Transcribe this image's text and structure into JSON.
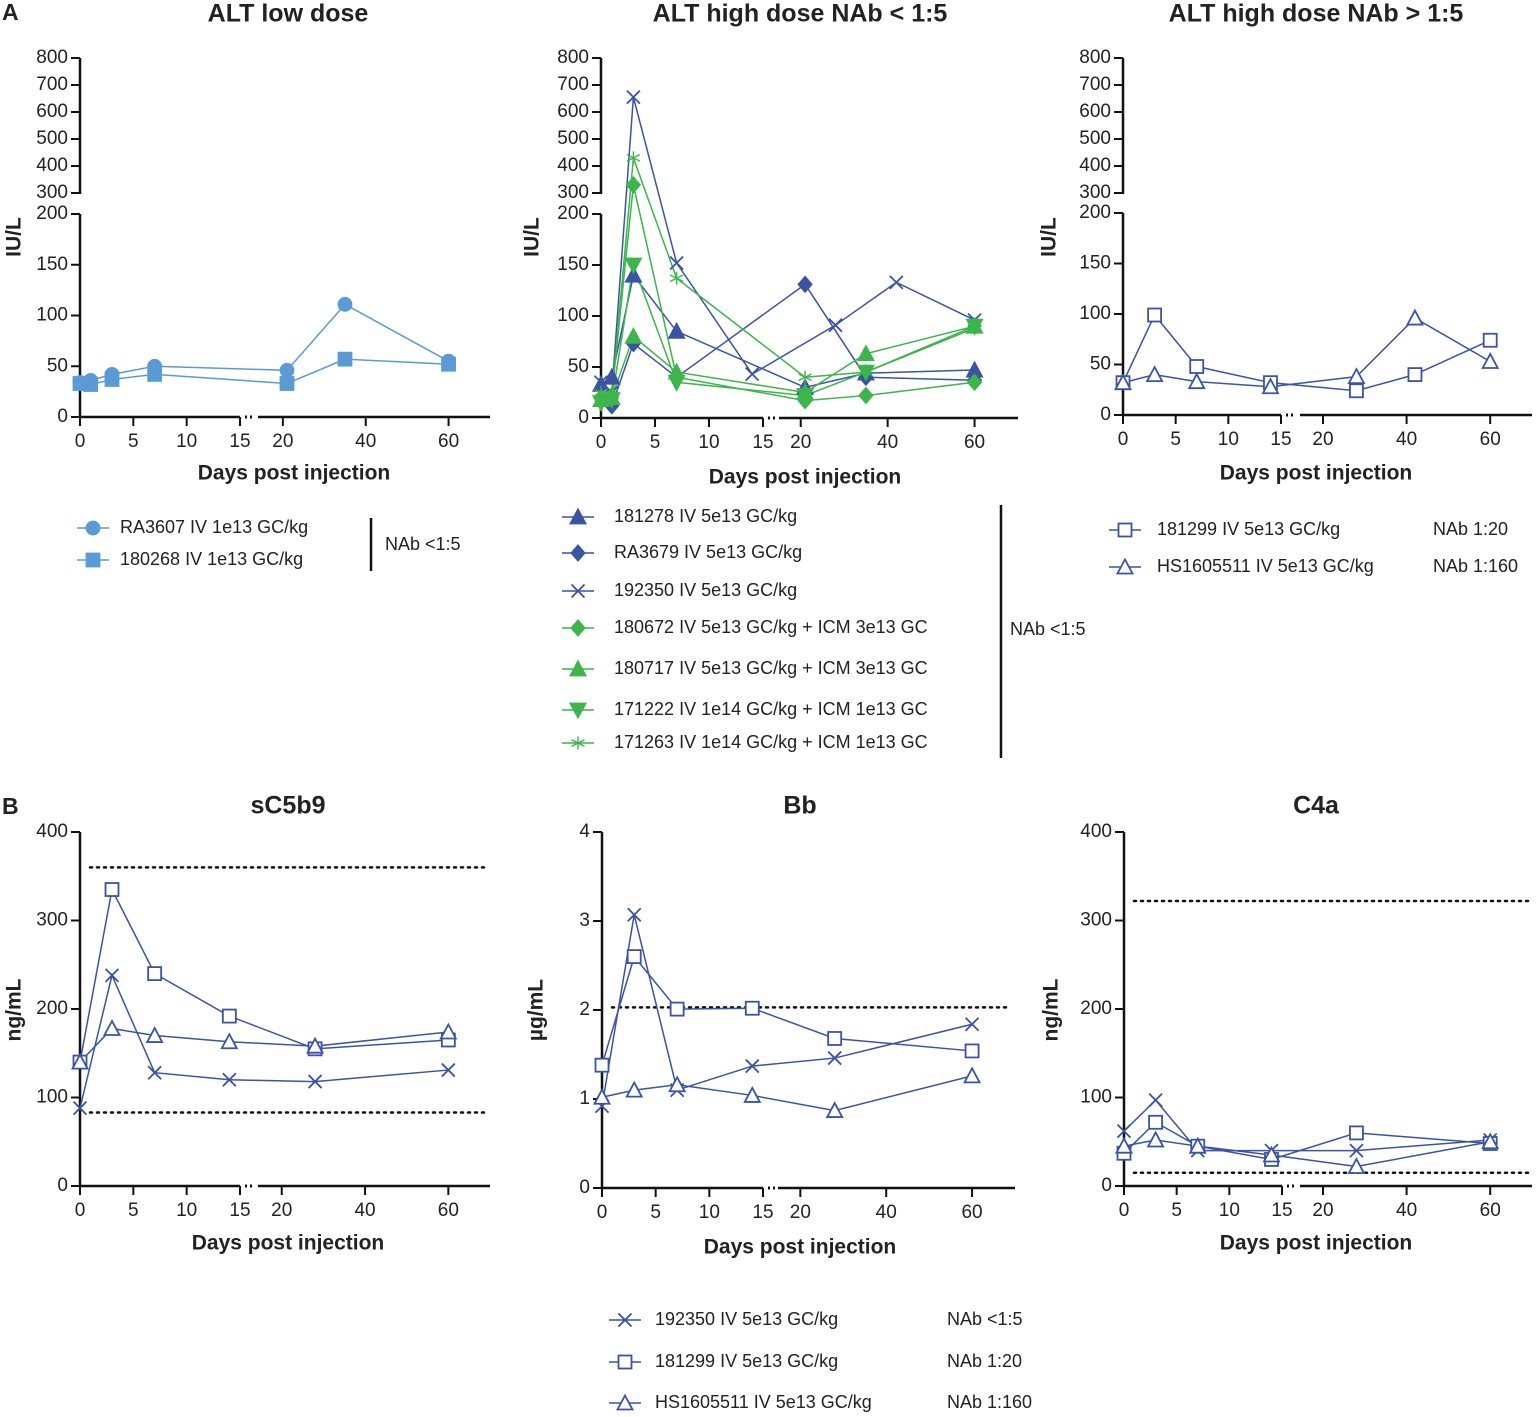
{
  "panel_labels": [
    "A",
    "B"
  ],
  "chart_data": [
    {
      "type": "line",
      "title": "ALT low dose",
      "xlabel": "Days post injection",
      "ylabel": "IU/L",
      "xlim_segments": [
        [
          0,
          15
        ],
        [
          14,
          70
        ]
      ],
      "xticks": [
        0,
        5,
        10,
        15,
        20,
        40,
        60
      ],
      "ylim_segments": [
        [
          0,
          200
        ],
        [
          300,
          800
        ]
      ],
      "yticks": [
        0,
        50,
        100,
        150,
        200,
        300,
        400,
        500,
        600,
        700,
        800
      ],
      "group_note": "NAb <1:5",
      "series": [
        {
          "name": "RA3607 IV 1e13 GC/kg",
          "color": "#5b9bd5",
          "marker": "circle",
          "marker_fill": true,
          "x": [
            0,
            1,
            3,
            7,
            21,
            35,
            60
          ],
          "values": [
            34,
            36,
            42,
            50,
            46,
            111,
            55
          ]
        },
        {
          "name": "180268 IV 1e13 GC/kg",
          "color": "#5b9bd5",
          "marker": "square",
          "marker_fill": true,
          "x": [
            0,
            1,
            3,
            7,
            21,
            35,
            60
          ],
          "values": [
            33,
            32,
            37,
            42,
            33,
            57,
            52
          ]
        }
      ]
    },
    {
      "type": "line",
      "title": "ALT high dose NAb < 1:5",
      "xlabel": "Days post injection",
      "ylabel": "IU/L",
      "xlim_segments": [
        [
          0,
          15
        ],
        [
          15,
          70
        ]
      ],
      "xticks": [
        0,
        5,
        10,
        15,
        20,
        40,
        60
      ],
      "ylim_segments": [
        [
          0,
          200
        ],
        [
          300,
          800
        ]
      ],
      "yticks": [
        0,
        50,
        100,
        150,
        200,
        300,
        400,
        500,
        600,
        700,
        800
      ],
      "group_note": "NAb <1:5",
      "series": [
        {
          "name": "181278 IV 5e13 GC/kg",
          "color": "#3a53a4",
          "marker": "triangle",
          "marker_fill": true,
          "x": [
            0,
            1,
            3,
            7,
            21,
            35,
            60
          ],
          "values": [
            33,
            40,
            140,
            85,
            30,
            44,
            47
          ]
        },
        {
          "name": "RA3679 IV 5e13 GC/kg",
          "color": "#3a53a4",
          "marker": "diamond",
          "marker_fill": true,
          "x": [
            0,
            1,
            3,
            7,
            21,
            35,
            60
          ],
          "values": [
            20,
            12,
            73,
            40,
            131,
            40,
            37
          ]
        },
        {
          "name": "192350 IV 5e13 GC/kg",
          "color": "#3a53a4",
          "marker": "x",
          "marker_fill": true,
          "x": [
            0,
            1,
            3,
            7,
            14,
            28,
            42,
            60
          ],
          "values": [
            35,
            25,
            655,
            152,
            43,
            91,
            133,
            96
          ]
        },
        {
          "name": "180672 IV 5e13 GC/kg + ICM 3e13 GC",
          "color": "#3cb54a",
          "marker": "diamond",
          "marker_fill": true,
          "x": [
            0,
            1,
            3,
            7,
            21,
            35,
            60
          ],
          "values": [
            20,
            22,
            330,
            40,
            17,
            22,
            35
          ]
        },
        {
          "name": "180717 IV 5e13 GC/kg + ICM 3e13 GC",
          "color": "#3cb54a",
          "marker": "triangle",
          "marker_fill": true,
          "x": [
            0,
            1,
            3,
            7,
            21,
            35,
            60
          ],
          "values": [
            18,
            20,
            80,
            45,
            25,
            63,
            90
          ]
        },
        {
          "name": "171222 IV 1e14 GC/kg + ICM 1e13 GC",
          "color": "#3cb54a",
          "marker": "triangle-down",
          "marker_fill": true,
          "x": [
            0,
            1,
            3,
            7,
            21,
            35,
            60
          ],
          "values": [
            15,
            18,
            150,
            35,
            22,
            45,
            90
          ]
        },
        {
          "name": "171263 IV 1e14 GC/kg + ICM 1e13 GC",
          "color": "#3cb54a",
          "marker": "asterisk",
          "marker_fill": true,
          "x": [
            0,
            1,
            3,
            7,
            21,
            35,
            60
          ],
          "values": [
            25,
            22,
            430,
            137,
            40,
            45,
            88
          ]
        }
      ]
    },
    {
      "type": "line",
      "title": "ALT high dose NAb > 1:5",
      "xlabel": "Days post injection",
      "ylabel": "IU/L",
      "xlim_segments": [
        [
          0,
          15
        ],
        [
          14.5,
          70
        ]
      ],
      "xticks": [
        0,
        5,
        10,
        15,
        20,
        40,
        60
      ],
      "ylim_segments": [
        [
          0,
          200
        ],
        [
          300,
          800
        ]
      ],
      "yticks": [
        0,
        50,
        100,
        150,
        200,
        300,
        400,
        500,
        600,
        700,
        800
      ],
      "series": [
        {
          "name": "181299 IV 5e13 GC/kg",
          "note": "NAb 1:20",
          "color": "#3a53a4",
          "marker": "square",
          "marker_fill": false,
          "x": [
            0,
            3,
            7,
            14,
            28,
            42,
            60
          ],
          "values": [
            32,
            99,
            48,
            32,
            24,
            40,
            74
          ]
        },
        {
          "name": "HS1605511 IV 5e13 GC/kg",
          "note": "NAb 1:160",
          "color": "#3a53a4",
          "marker": "triangle",
          "marker_fill": false,
          "x": [
            0,
            3,
            7,
            14,
            28,
            42,
            60
          ],
          "values": [
            32,
            40,
            33,
            28,
            38,
            96,
            53
          ]
        }
      ]
    },
    {
      "type": "line",
      "title": "sC5b9",
      "xlabel": "Days post injection",
      "ylabel": "ng/mL",
      "xlim_segments": [
        [
          0,
          15
        ],
        [
          14.3,
          70
        ]
      ],
      "xticks": [
        0,
        5,
        10,
        15,
        20,
        40,
        60
      ],
      "ylim_segments": [
        [
          0,
          400
        ]
      ],
      "yticks": [
        0,
        100,
        200,
        300,
        400
      ],
      "hlines": [
        360,
        83
      ],
      "series": [
        {
          "color": "#3a53a4",
          "marker": "x",
          "marker_fill": false,
          "x": [
            0,
            3,
            7,
            14,
            28,
            60
          ],
          "values": [
            88,
            238,
            128,
            120,
            118,
            131
          ]
        },
        {
          "color": "#3a53a4",
          "marker": "square",
          "marker_fill": false,
          "x": [
            0,
            3,
            7,
            14,
            28,
            60
          ],
          "values": [
            140,
            335,
            240,
            192,
            155,
            165
          ]
        },
        {
          "color": "#3a53a4",
          "marker": "triangle",
          "marker_fill": false,
          "x": [
            0,
            3,
            7,
            14,
            28,
            60
          ],
          "values": [
            140,
            178,
            170,
            163,
            158,
            174
          ]
        }
      ]
    },
    {
      "type": "line",
      "title": "Bb",
      "xlabel": "Days post injection",
      "ylabel": "µg/mL",
      "xlim_segments": [
        [
          0,
          15
        ],
        [
          14.8,
          70
        ]
      ],
      "xticks": [
        0,
        5,
        10,
        15,
        20,
        40,
        60
      ],
      "ylim_segments": [
        [
          0,
          4
        ]
      ],
      "yticks": [
        0,
        1,
        2,
        3,
        4
      ],
      "hlines": [
        2.03
      ],
      "series": [
        {
          "color": "#3a53a4",
          "marker": "x",
          "marker_fill": false,
          "x": [
            0,
            3,
            7,
            14,
            28,
            60
          ],
          "values": [
            0.92,
            3.07,
            1.1,
            1.37,
            1.46,
            1.84
          ]
        },
        {
          "color": "#3a53a4",
          "marker": "square",
          "marker_fill": false,
          "x": [
            0,
            3,
            7,
            14,
            28,
            60
          ],
          "values": [
            1.38,
            2.6,
            2.01,
            2.02,
            1.68,
            1.54
          ]
        },
        {
          "color": "#3a53a4",
          "marker": "triangle",
          "marker_fill": false,
          "x": [
            0,
            3,
            7,
            14,
            28,
            60
          ],
          "values": [
            1.02,
            1.1,
            1.16,
            1.04,
            0.87,
            1.26
          ]
        }
      ]
    },
    {
      "type": "line",
      "title": "C4a",
      "xlabel": "Days post injection",
      "ylabel": "ng/mL",
      "xlim_segments": [
        [
          0,
          15
        ],
        [
          14.5,
          70
        ]
      ],
      "xticks": [
        0,
        5,
        10,
        15,
        20,
        40,
        60
      ],
      "ylim_segments": [
        [
          0,
          400
        ]
      ],
      "yticks": [
        0,
        100,
        200,
        300,
        400
      ],
      "hlines": [
        322,
        15
      ],
      "series": [
        {
          "color": "#3a53a4",
          "marker": "x",
          "marker_fill": false,
          "x": [
            0,
            3,
            7,
            14,
            28,
            60
          ],
          "values": [
            62,
            97,
            40,
            40,
            40,
            52
          ]
        },
        {
          "color": "#3a53a4",
          "marker": "square",
          "marker_fill": false,
          "x": [
            0,
            3,
            7,
            14,
            28,
            60
          ],
          "values": [
            37,
            72,
            45,
            30,
            60,
            48
          ]
        },
        {
          "color": "#3a53a4",
          "marker": "triangle",
          "marker_fill": false,
          "x": [
            0,
            3,
            7,
            14,
            28,
            60
          ],
          "values": [
            45,
            52,
            45,
            35,
            22,
            50
          ]
        }
      ]
    }
  ],
  "legend": {
    "items": [
      {
        "name": "192350 IV 5e13 GC/kg",
        "note": "NAb <1:5",
        "color": "#3a53a4",
        "marker": "x",
        "marker_fill": false
      },
      {
        "name": "181299 IV 5e13 GC/kg",
        "note": "NAb 1:20",
        "color": "#3a53a4",
        "marker": "square",
        "marker_fill": false
      },
      {
        "name": "HS1605511 IV 5e13 GC/kg",
        "note": "NAb 1:160",
        "color": "#3a53a4",
        "marker": "triangle",
        "marker_fill": false
      }
    ]
  }
}
